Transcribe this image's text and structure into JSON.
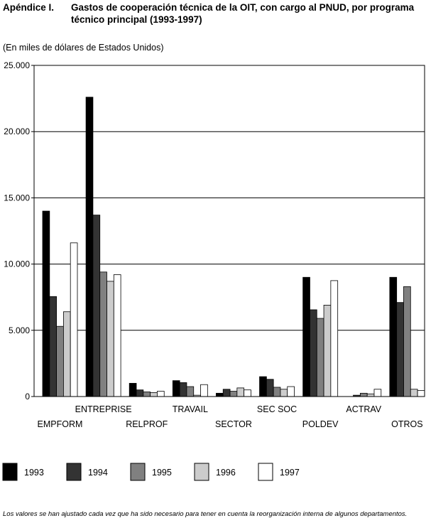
{
  "heading": {
    "label": "Apéndice I.",
    "title": "Gastos de cooperación técnica de la OIT, con cargo al PNUD, por programa técnico principal (1993-1997)"
  },
  "unit_note": "(En miles de dólares de Estados Unidos)",
  "footnote": "Los valores se han ajustado cada vez que ha sido necesario para tener en cuenta la reorganización interna de algunos departamentos.",
  "chart_data": {
    "type": "bar",
    "title": "Gastos de cooperación técnica de la OIT, con cargo al PNUD, por programa técnico principal (1993-1997)",
    "ylabel": "(En miles de dólares de Estados Unidos)",
    "xlabel": "",
    "ylim": [
      0,
      25000
    ],
    "yticks": [
      0,
      5000,
      10000,
      15000,
      20000,
      25000
    ],
    "ytick_labels": [
      "0",
      "5.000",
      "10.000",
      "15.000",
      "20.000",
      "25.000"
    ],
    "grid": true,
    "legend_position": "bottom",
    "categories": [
      "EMPFORM",
      "ENTREPRISE",
      "RELPROF",
      "TRAVAIL",
      "SECTOR",
      "SEC SOC",
      "POLDEV",
      "ACTRAV",
      "OTROS"
    ],
    "series": [
      {
        "name": "1993",
        "color": "#000000",
        "values": [
          14000,
          22600,
          1000,
          1200,
          250,
          1500,
          9000,
          0,
          9000
        ]
      },
      {
        "name": "1994",
        "color": "#333333",
        "values": [
          7550,
          13700,
          500,
          1050,
          550,
          1300,
          6550,
          100,
          7100
        ]
      },
      {
        "name": "1995",
        "color": "#808080",
        "values": [
          5300,
          9400,
          350,
          750,
          400,
          700,
          5900,
          250,
          8300
        ]
      },
      {
        "name": "1996",
        "color": "#cccccc",
        "values": [
          6400,
          8700,
          300,
          100,
          650,
          550,
          6900,
          200,
          550
        ]
      },
      {
        "name": "1997",
        "color": "#ffffff",
        "values": [
          11600,
          9200,
          400,
          900,
          500,
          750,
          8750,
          550,
          450
        ]
      }
    ]
  }
}
